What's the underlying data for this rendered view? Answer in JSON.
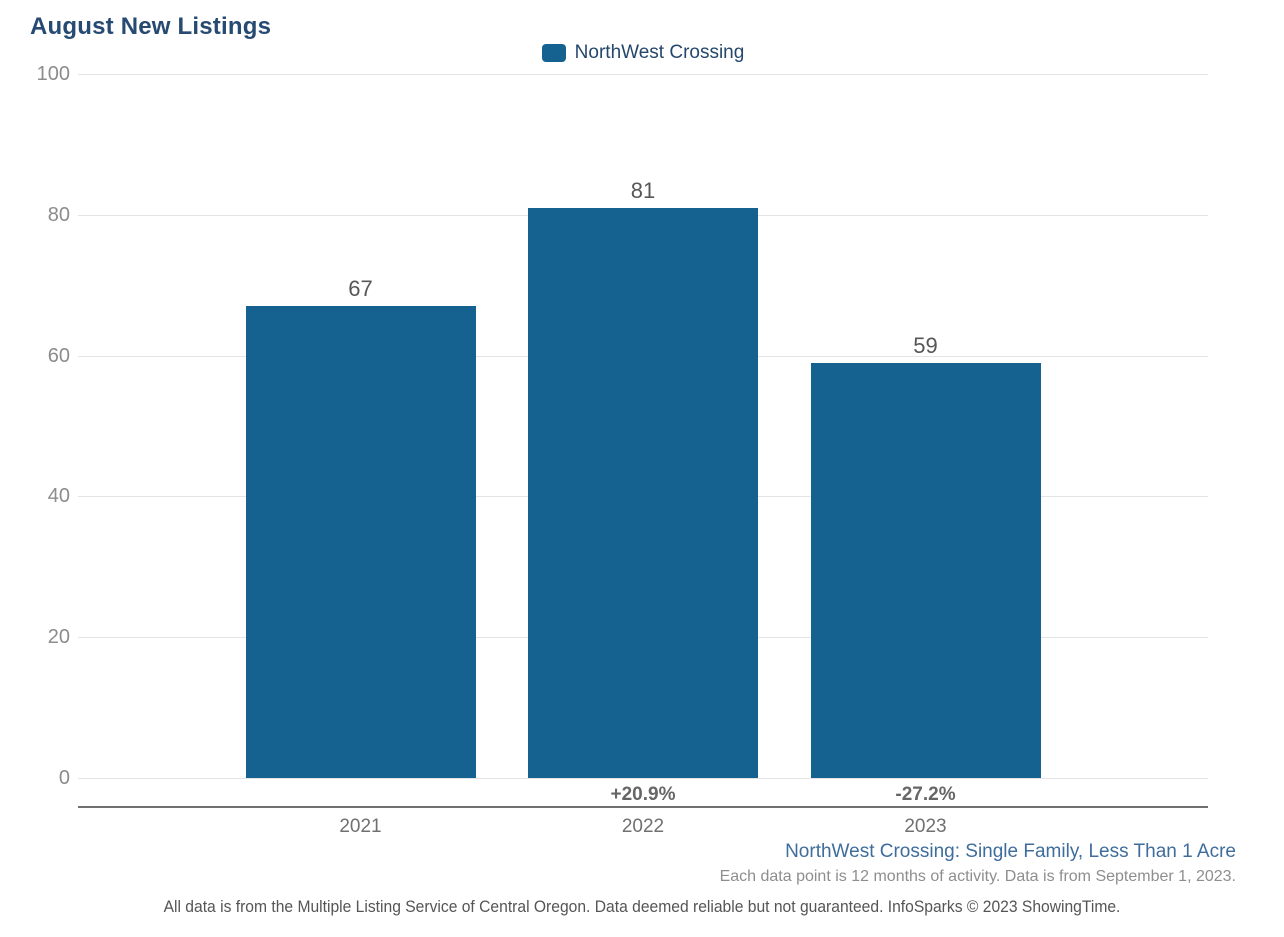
{
  "title": "August New Listings",
  "legend": {
    "label": "NorthWest Crossing"
  },
  "chart_data": {
    "type": "bar",
    "title": "August New Listings",
    "categories": [
      "2021",
      "2022",
      "2023"
    ],
    "series": [
      {
        "name": "NorthWest Crossing",
        "values": [
          67,
          81,
          59
        ]
      }
    ],
    "values": [
      67,
      81,
      59
    ],
    "value_labels": [
      "67",
      "81",
      "59"
    ],
    "pct_change_labels": [
      "",
      "+20.9%",
      "-27.2%"
    ],
    "xlabel": "",
    "ylabel": "",
    "ylim": [
      0,
      100
    ],
    "yticks": [
      0,
      20,
      40,
      60,
      80,
      100
    ],
    "grid": true,
    "legend_position": "top-center",
    "bar_color": "#15618f"
  },
  "colors": {
    "bar": "#15618f",
    "title_text": "#264a72",
    "legend_text": "#25476b",
    "segment_link_text": "#3e6d9c",
    "axis_line": "#707070",
    "gridline": "#e4e4e4"
  },
  "footer": {
    "segment": "NorthWest Crossing: Single Family, Less Than 1 Acre",
    "note": "Each data point is 12 months of activity. Data is from September 1, 2023.",
    "disclaimer": "All data is from the Multiple Listing Service of Central Oregon. Data deemed reliable but not guaranteed. InfoSparks © 2023 ShowingTime."
  }
}
